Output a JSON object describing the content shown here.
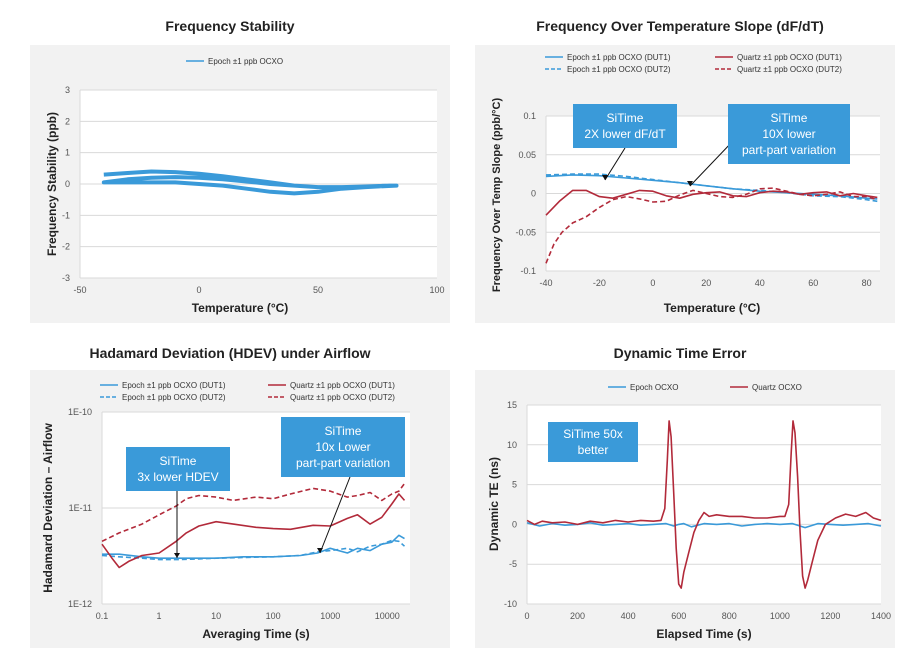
{
  "panels": [
    {
      "title": "Frequency Stability"
    },
    {
      "title": "Frequency Over Temperature Slope (dF/dT)"
    },
    {
      "title": "Hadamard Deviation (HDEV) under Airflow"
    },
    {
      "title": "Dynamic Time Error"
    }
  ],
  "colors": {
    "blue": "#3a9ad9",
    "red": "#b22a3a",
    "bg": "#f2f2f2",
    "callout": "#3a9ad9",
    "grid": "#d9d9d9"
  },
  "chart_data": [
    {
      "type": "line",
      "title": "Frequency Stability",
      "xlabel": "Temperature (°C)",
      "ylabel": "Frequency Stability (ppb)",
      "xlim": [
        -50,
        100
      ],
      "ylim": [
        -3,
        3
      ],
      "xticks": [
        "-50",
        "0",
        "50",
        "100"
      ],
      "yticks": [
        "3",
        "2",
        "1",
        "0",
        "-1",
        "-2",
        "-3"
      ],
      "xtickvals": [
        -50,
        0,
        50,
        100
      ],
      "ytickvals": [
        3,
        2,
        1,
        0,
        -1,
        -2,
        -3
      ],
      "grid": "horizontal",
      "legend_position": "top",
      "series": [
        {
          "name": "Epoch ±1 ppb OCXO",
          "style": "solid",
          "color": "#3a9ad9",
          "width": 4,
          "x": [
            -40,
            -30,
            -20,
            -10,
            0,
            10,
            20,
            30,
            40,
            50,
            60,
            70,
            80,
            83,
            70,
            60,
            50,
            40,
            30,
            20,
            10,
            0,
            -10,
            -20,
            -30,
            -40,
            -30,
            -20,
            -10,
            0,
            10,
            20,
            30,
            40,
            50,
            60,
            70,
            80,
            83
          ],
          "y": [
            0.3,
            0.35,
            0.4,
            0.38,
            0.33,
            0.25,
            0.15,
            0.05,
            -0.05,
            -0.1,
            -0.12,
            -0.1,
            -0.05,
            -0.05,
            -0.1,
            -0.15,
            -0.25,
            -0.3,
            -0.25,
            -0.15,
            -0.05,
            0.0,
            0.05,
            0.05,
            0.05,
            0.05,
            0.15,
            0.2,
            0.22,
            0.2,
            0.15,
            0.08,
            0.0,
            -0.05,
            -0.1,
            -0.1,
            -0.08,
            -0.05,
            -0.05
          ]
        }
      ]
    },
    {
      "type": "line",
      "title": "Frequency Over Temperature Slope (dF/dT)",
      "xlabel": "Temperature (°C)",
      "ylabel": "Frequency Over Temp  Slope (ppb/°C)",
      "xlim": [
        -40,
        85
      ],
      "ylim": [
        -0.1,
        0.1
      ],
      "xticks": [
        "-40",
        "-20",
        "0",
        "20",
        "40",
        "60",
        "80"
      ],
      "yticks": [
        "0.1",
        "0.05",
        "0",
        "-0.05",
        "-0.1"
      ],
      "xtickvals": [
        -40,
        -20,
        0,
        20,
        40,
        60,
        80
      ],
      "ytickvals": [
        0.1,
        0.05,
        0,
        -0.05,
        -0.1
      ],
      "grid": "horizontal",
      "legend_position": "top",
      "series": [
        {
          "name": "Epoch ±1 ppb OCXO (DUT1)",
          "style": "solid",
          "color": "#3a9ad9",
          "x": [
            -40,
            -30,
            -20,
            -10,
            0,
            10,
            20,
            30,
            40,
            50,
            60,
            70,
            80,
            84
          ],
          "y": [
            0.022,
            0.024,
            0.023,
            0.02,
            0.017,
            0.014,
            0.01,
            0.006,
            0.003,
            0.001,
            -0.001,
            -0.003,
            -0.006,
            -0.007
          ]
        },
        {
          "name": "Epoch ±1 ppb OCXO (DUT2)",
          "style": "dashed",
          "color": "#3a9ad9",
          "x": [
            -40,
            -30,
            -20,
            -10,
            0,
            10,
            20,
            30,
            40,
            50,
            60,
            70,
            80,
            84
          ],
          "y": [
            0.024,
            0.025,
            0.025,
            0.022,
            0.018,
            0.014,
            0.01,
            0.006,
            0.004,
            0.001,
            -0.003,
            -0.004,
            -0.008,
            -0.01
          ]
        },
        {
          "name": "Quartz ±1 ppb OCXO (DUT1)",
          "style": "solid",
          "color": "#b22a3a",
          "x": [
            -40,
            -35,
            -30,
            -25,
            -20,
            -15,
            -10,
            -5,
            0,
            5,
            10,
            15,
            20,
            25,
            30,
            35,
            40,
            45,
            50,
            55,
            60,
            65,
            70,
            75,
            80,
            84
          ],
          "y": [
            -0.028,
            -0.01,
            0.004,
            0.004,
            -0.004,
            -0.006,
            -0.001,
            0.004,
            0.003,
            -0.003,
            -0.006,
            -0.001,
            0.001,
            0.002,
            -0.003,
            -0.004,
            0.001,
            0.003,
            0.002,
            -0.001,
            0.001,
            0.002,
            -0.003,
            0.0,
            -0.003,
            -0.005
          ]
        },
        {
          "name": "Quartz ±1 ppb OCXO (DUT2)",
          "style": "dashed",
          "color": "#b22a3a",
          "x": [
            -40,
            -37,
            -34,
            -30,
            -25,
            -20,
            -15,
            -10,
            -5,
            0,
            5,
            10,
            15,
            20,
            25,
            30,
            35,
            40,
            45,
            50,
            55,
            60,
            65,
            70,
            75,
            80,
            84
          ],
          "y": [
            -0.09,
            -0.065,
            -0.05,
            -0.038,
            -0.03,
            -0.018,
            -0.008,
            -0.004,
            -0.007,
            -0.011,
            -0.01,
            -0.002,
            0.004,
            0.0,
            -0.004,
            -0.005,
            -0.001,
            0.006,
            0.007,
            0.003,
            -0.001,
            -0.003,
            -0.001,
            0.002,
            -0.004,
            -0.004,
            -0.008
          ]
        }
      ],
      "annotations": [
        {
          "lines": [
            "SiTime",
            "2X lower dF/dT"
          ]
        },
        {
          "lines": [
            "SiTime",
            "10X lower",
            "part-part variation"
          ]
        }
      ]
    },
    {
      "type": "line",
      "title": "Hadamard Deviation (HDEV) under Airflow",
      "xlabel": "Averaging Time (s)",
      "ylabel": "Hadamard Deviation – Airflow",
      "xscale": "log",
      "yscale": "log",
      "xlim": [
        0.1,
        25000
      ],
      "ylim": [
        1e-12,
        1e-10
      ],
      "xticks": [
        "0.1",
        "1",
        "10",
        "100",
        "1000",
        "10000"
      ],
      "yticks": [
        "1E-10",
        "1E-11",
        "1E-12"
      ],
      "xtickvals": [
        0.1,
        1,
        10,
        100,
        1000,
        10000
      ],
      "ytickvals": [
        1e-10,
        1e-11,
        1e-12
      ],
      "grid": "horizontal",
      "legend_position": "top",
      "series": [
        {
          "name": "Epoch ±1 ppb OCXO (DUT1)",
          "style": "solid",
          "color": "#3a9ad9",
          "x": [
            0.1,
            0.2,
            0.5,
            1,
            2,
            5,
            10,
            30,
            100,
            300,
            600,
            1000,
            2000,
            3000,
            5000,
            8000,
            12000,
            16000,
            20000
          ],
          "y": [
            3.3e-12,
            3.3e-12,
            3.1e-12,
            3e-12,
            3e-12,
            3e-12,
            3e-12,
            3.1e-12,
            3.1e-12,
            3.2e-12,
            3.4e-12,
            3.8e-12,
            3.4e-12,
            3.8e-12,
            3.6e-12,
            4.2e-12,
            4.4e-12,
            5.2e-12,
            4.8e-12
          ]
        },
        {
          "name": "Epoch ±1 ppb OCXO (DUT2)",
          "style": "dashed",
          "color": "#3a9ad9",
          "x": [
            0.1,
            0.2,
            0.5,
            1,
            2,
            5,
            10,
            30,
            100,
            300,
            600,
            1000,
            2000,
            3000,
            5000,
            8000,
            12000,
            16000,
            20000
          ],
          "y": [
            3.2e-12,
            3.1e-12,
            3e-12,
            2.9e-12,
            2.9e-12,
            2.95e-12,
            3e-12,
            3.05e-12,
            3.1e-12,
            3.2e-12,
            3.5e-12,
            3.6e-12,
            3.8e-12,
            3.5e-12,
            4e-12,
            4.2e-12,
            4.6e-12,
            4.5e-12,
            4e-12
          ]
        },
        {
          "name": "Quartz ±1 ppb OCXO (DUT1)",
          "style": "solid",
          "color": "#b22a3a",
          "x": [
            0.1,
            0.15,
            0.2,
            0.3,
            0.5,
            1,
            2,
            3,
            5,
            10,
            20,
            50,
            100,
            200,
            500,
            1000,
            2000,
            3000,
            5000,
            8000,
            12000,
            16000,
            20000
          ],
          "y": [
            4.2e-12,
            3e-12,
            2.4e-12,
            2.8e-12,
            3.2e-12,
            3.4e-12,
            4.5e-12,
            5.5e-12,
            6.5e-12,
            7.2e-12,
            6.8e-12,
            6.3e-12,
            6.1e-12,
            6e-12,
            6.6e-12,
            6.5e-12,
            7.8e-12,
            8.5e-12,
            6.8e-12,
            8e-12,
            1.1e-11,
            1.4e-11,
            1.2e-11
          ]
        },
        {
          "name": "Quartz ±1 ppb OCXO (DUT2)",
          "style": "dashed",
          "color": "#b22a3a",
          "x": [
            0.1,
            0.2,
            0.5,
            1,
            2,
            3,
            5,
            10,
            20,
            50,
            100,
            200,
            500,
            1000,
            2000,
            3000,
            5000,
            8000,
            12000,
            16000,
            20000
          ],
          "y": [
            4.5e-12,
            5.5e-12,
            6.8e-12,
            8.5e-12,
            1.05e-11,
            1.25e-11,
            1.35e-11,
            1.3e-11,
            1.2e-11,
            1.3e-11,
            1.25e-11,
            1.4e-11,
            1.6e-11,
            1.5e-11,
            1.3e-11,
            1.35e-11,
            1.45e-11,
            1.2e-11,
            1.4e-11,
            1.5e-11,
            1.8e-11
          ]
        }
      ],
      "annotations": [
        {
          "lines": [
            "SiTime",
            "3x lower HDEV"
          ]
        },
        {
          "lines": [
            "SiTime",
            "10x Lower",
            "part-part variation"
          ]
        }
      ]
    },
    {
      "type": "line",
      "title": "Dynamic Time Error",
      "xlabel": "Elapsed Time (s)",
      "ylabel": "Dynamic TE (ns)",
      "xlim": [
        0,
        1400
      ],
      "ylim": [
        -10,
        15
      ],
      "xticks": [
        "0",
        "200",
        "400",
        "600",
        "800",
        "1000",
        "1200",
        "1400"
      ],
      "yticks": [
        "15",
        "10",
        "5",
        "0",
        "-5",
        "-10"
      ],
      "xtickvals": [
        0,
        200,
        400,
        600,
        800,
        1000,
        1200,
        1400
      ],
      "ytickvals": [
        15,
        10,
        5,
        0,
        -5,
        -10
      ],
      "grid": "horizontal",
      "legend_position": "top",
      "series": [
        {
          "name": "Epoch OCXO",
          "style": "solid",
          "color": "#3a9ad9",
          "x": [
            0,
            50,
            100,
            150,
            200,
            250,
            300,
            350,
            400,
            450,
            500,
            550,
            580,
            600,
            620,
            650,
            700,
            750,
            800,
            850,
            900,
            950,
            1000,
            1050,
            1100,
            1150,
            1200,
            1250,
            1300,
            1350,
            1400
          ],
          "y": [
            0.2,
            -0.2,
            0.1,
            -0.1,
            0.0,
            0.2,
            -0.1,
            0.0,
            0.1,
            -0.1,
            0.0,
            0.1,
            -0.2,
            0.0,
            0.1,
            -0.3,
            0.1,
            0.0,
            0.1,
            -0.2,
            0.0,
            0.1,
            0.0,
            0.1,
            -0.4,
            0.1,
            0.0,
            -0.1,
            0.0,
            0.1,
            -0.2
          ]
        },
        {
          "name": "Quartz OCXO",
          "style": "solid",
          "color": "#b22a3a",
          "x": [
            0,
            30,
            60,
            100,
            150,
            200,
            250,
            300,
            350,
            400,
            450,
            500,
            530,
            545,
            555,
            562,
            570,
            580,
            590,
            600,
            610,
            620,
            640,
            660,
            680,
            700,
            720,
            750,
            800,
            850,
            900,
            950,
            1000,
            1020,
            1035,
            1045,
            1052,
            1060,
            1070,
            1080,
            1090,
            1100,
            1110,
            1130,
            1150,
            1180,
            1220,
            1260,
            1300,
            1340,
            1370,
            1400
          ],
          "y": [
            0.5,
            0.0,
            0.4,
            0.2,
            0.3,
            0.0,
            0.4,
            0.2,
            0.5,
            0.3,
            0.5,
            0.4,
            0.5,
            2.0,
            8.0,
            13.0,
            11.0,
            4.0,
            -3.0,
            -7.5,
            -8.0,
            -6.0,
            -3.5,
            -1.0,
            0.5,
            1.5,
            1.0,
            1.2,
            1.0,
            1.0,
            0.8,
            0.8,
            1.0,
            1.0,
            2.5,
            9.0,
            13.0,
            11.5,
            6.0,
            -1.0,
            -6.5,
            -8.0,
            -7.0,
            -4.5,
            -2.0,
            0.0,
            0.8,
            1.3,
            1.0,
            1.5,
            0.8,
            0.5
          ]
        }
      ],
      "annotations": [
        {
          "lines": [
            "SiTime 50x",
            "better"
          ]
        }
      ]
    }
  ]
}
